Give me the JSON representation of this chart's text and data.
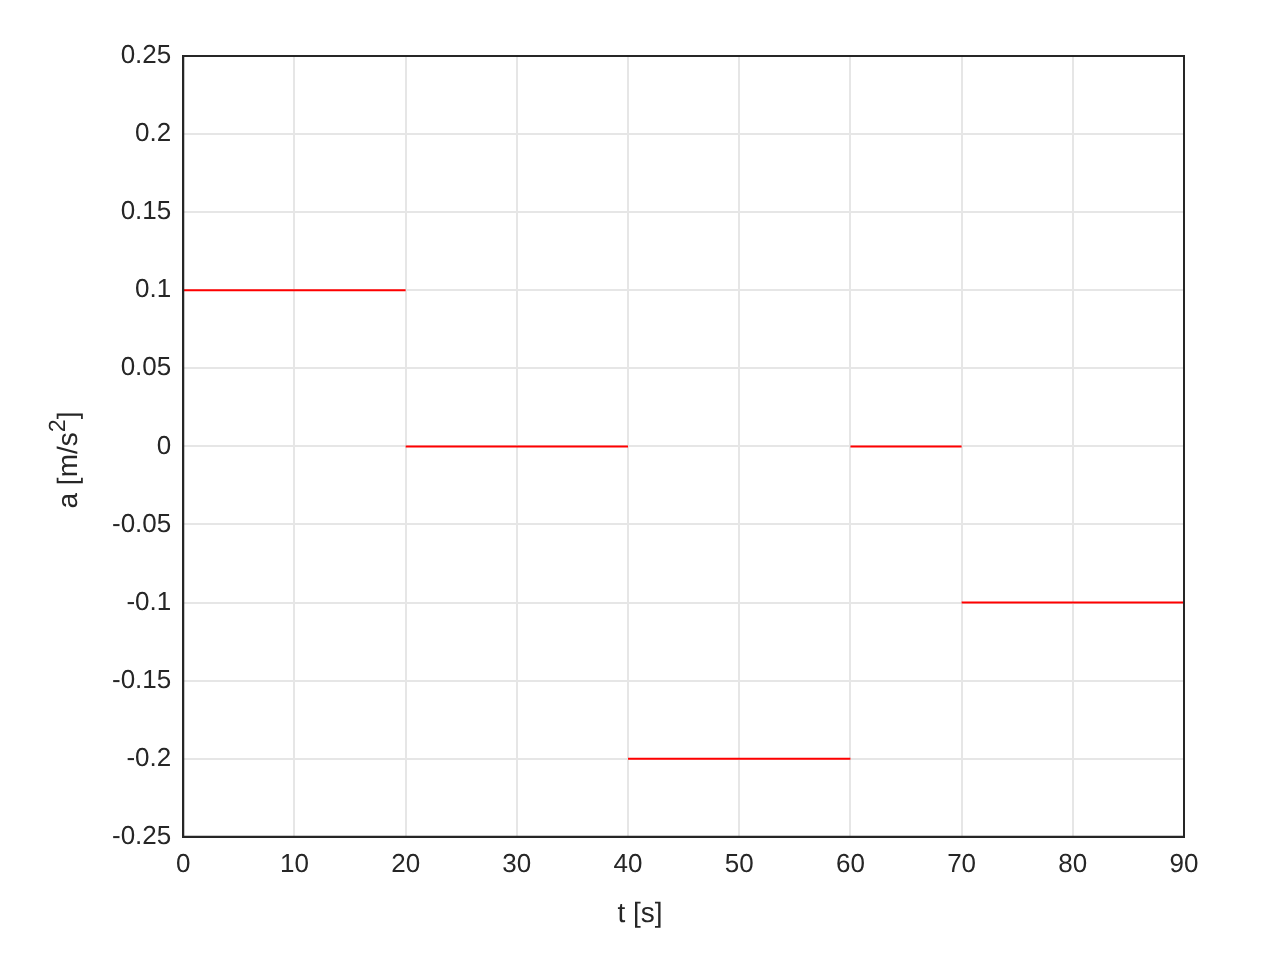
{
  "chart_data": {
    "type": "line",
    "xlabel": "t [s]",
    "ylabel": "a [m/s$^{2}$]",
    "series": [
      {
        "color": "#ff0000",
        "x": [
          0,
          20
        ],
        "values": [
          0.1,
          0.1
        ]
      },
      {
        "color": "#ff0000",
        "x": [
          20,
          40
        ],
        "values": [
          0,
          0
        ]
      },
      {
        "color": "#ff0000",
        "x": [
          40,
          60
        ],
        "values": [
          -0.2,
          -0.2
        ]
      },
      {
        "color": "#ff0000",
        "x": [
          60,
          70
        ],
        "values": [
          0,
          0
        ]
      },
      {
        "color": "#ff0000",
        "x": [
          70,
          90
        ],
        "values": [
          -0.1,
          -0.1
        ]
      }
    ],
    "xlim": [
      0,
      90
    ],
    "xticks": [
      0,
      10,
      20,
      30,
      40,
      50,
      60,
      70,
      80,
      90
    ],
    "ylim": [
      -0.25,
      0.25
    ],
    "yticks": [
      -0.25,
      -0.2,
      -0.15,
      -0.1,
      -0.05,
      0,
      0.05,
      0.1,
      0.15,
      0.2,
      0.25
    ],
    "grid": true,
    "legend": false,
    "marker": "none",
    "line_style": "solid"
  }
}
